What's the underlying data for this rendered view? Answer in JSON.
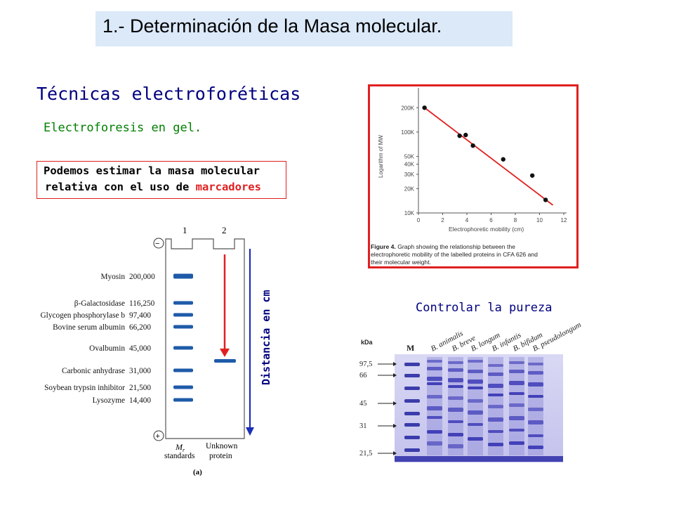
{
  "title": "1.- Determinación de la Masa molecular.",
  "heading": "Técnicas electroforéticas",
  "subheading": "Electroforesis en gel.",
  "note": {
    "line1": "Podemos estimar la masa molecular",
    "line2_prefix": "relativa con el uso de ",
    "line2_highlight": "marcadores"
  },
  "purity_heading": "Controlar la pureza",
  "gel_a": {
    "lane_labels": [
      "1",
      "2"
    ],
    "minus": "−",
    "plus": "+",
    "markers": [
      {
        "name": "Myosin",
        "mass": "200,000"
      },
      {
        "name": "β-Galactosidase",
        "mass": "116,250"
      },
      {
        "name": "Glycogen phosphorylase b",
        "mass": "97,400"
      },
      {
        "name": "Bovine serum albumin",
        "mass": "66,200"
      },
      {
        "name": "Ovalbumin",
        "mass": "45,000"
      },
      {
        "name": "Carbonic anhydrase",
        "mass": "31,000"
      },
      {
        "name": "Soybean trypsin inhibitor",
        "mass": "21,500"
      },
      {
        "name": "Lysozyme",
        "mass": "14,400"
      }
    ],
    "bottom_left_1": "M",
    "bottom_left_sub": "r",
    "bottom_left_2": "standards",
    "bottom_right_1": "Unknown",
    "bottom_right_2": "protein",
    "panel_label": "(a)",
    "distance_label": "Distancia en cm"
  },
  "chart_data": {
    "type": "scatter",
    "xlabel": "Electrophoretic mobility (cm)",
    "ylabel": "Logarithm of MW",
    "x_ticks": [
      "0",
      "2",
      "4",
      "6",
      "8",
      "10",
      "12"
    ],
    "y_ticks": [
      "10K",
      "20K",
      "30K",
      "40K",
      "50K",
      "100K",
      "200K"
    ],
    "y_scale": "log",
    "xlim": [
      0,
      12
    ],
    "ylim": [
      10000,
      300000
    ],
    "points": [
      {
        "x": 0.5,
        "y": 200000
      },
      {
        "x": 3.4,
        "y": 90000
      },
      {
        "x": 3.9,
        "y": 92000
      },
      {
        "x": 4.5,
        "y": 68000
      },
      {
        "x": 7.0,
        "y": 46000
      },
      {
        "x": 9.4,
        "y": 29000
      },
      {
        "x": 10.5,
        "y": 14500
      }
    ],
    "fit_line": [
      {
        "x": 0.5,
        "y": 200000
      },
      {
        "x": 11.1,
        "y": 12500
      }
    ],
    "caption_bold": "Figure 4.",
    "caption_line1": " Graph showing the relationship between the",
    "caption_line2": "electrophoretic mobility of the labelled proteins in CFA 626 and",
    "caption_line3": "their molecular weight."
  },
  "gel_b": {
    "unit_label": "kDa",
    "marker_label": "M",
    "kda_values": [
      "97,5",
      "66",
      "45",
      "31",
      "21,5"
    ],
    "lanes": [
      "B. animalis",
      "B. breve",
      "B. longum",
      "B. infantis",
      "B. bifidum",
      "B. pseudolongum"
    ]
  },
  "colors": {
    "title_bg": "#dbe9f9",
    "heading": "#000080",
    "subheading": "#008000",
    "highlight": "#e02020",
    "band": "#1e5aa8",
    "gel_b_bg": "#c9c8ef"
  }
}
